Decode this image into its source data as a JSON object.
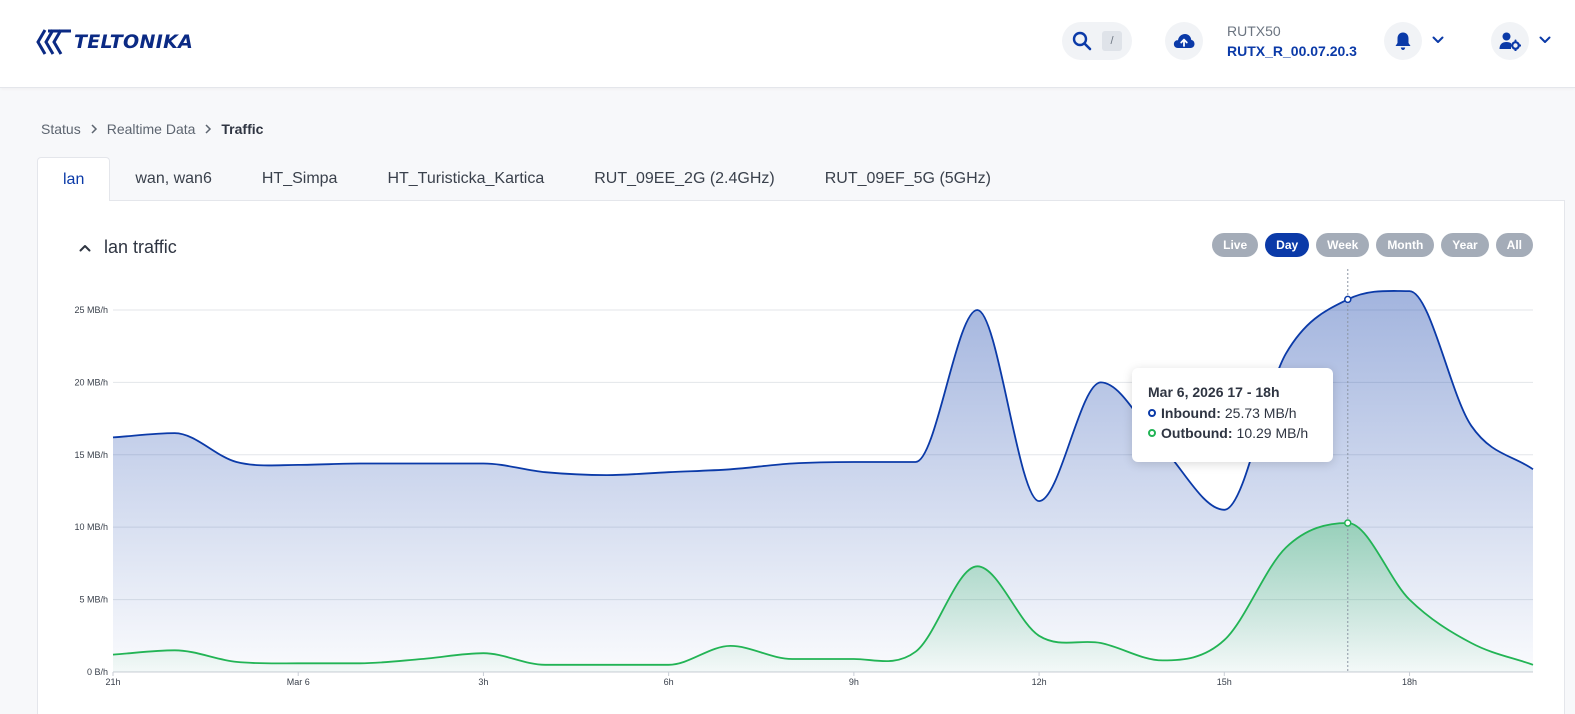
{
  "header": {
    "logo_text": "TELTONIKA",
    "search_shortcut": "/",
    "device_model": "RUTX50",
    "firmware": "RUTX_R_00.07.20.3"
  },
  "breadcrumb": [
    "Status",
    "Realtime Data",
    "Traffic"
  ],
  "tabs": [
    {
      "label": "lan",
      "active": true
    },
    {
      "label": "wan, wan6",
      "active": false
    },
    {
      "label": "HT_Simpa",
      "active": false
    },
    {
      "label": "HT_Turisticka_Kartica",
      "active": false
    },
    {
      "label": "RUT_09EE_2G (2.4GHz)",
      "active": false
    },
    {
      "label": "RUT_09EF_5G (5GHz)",
      "active": false
    }
  ],
  "panel": {
    "title": "lan traffic",
    "ranges": [
      {
        "label": "Live",
        "active": false
      },
      {
        "label": "Day",
        "active": true
      },
      {
        "label": "Week",
        "active": false
      },
      {
        "label": "Month",
        "active": false
      },
      {
        "label": "Year",
        "active": false
      },
      {
        "label": "All",
        "active": false
      }
    ]
  },
  "tooltip": {
    "title": "Mar 6, 2026 17 - 18h",
    "inbound_label": "Inbound:",
    "inbound_value": "25.73 MB/h",
    "outbound_label": "Outbound:",
    "outbound_value": "10.29 MB/h"
  },
  "colors": {
    "inbound": "#0b3aa8",
    "outbound": "#22b455",
    "accent": "#0b3aa8"
  },
  "chart_data": {
    "type": "area",
    "x_tick_labels": [
      "21h",
      "Mar 6",
      "3h",
      "6h",
      "9h",
      "12h",
      "15h",
      "18h"
    ],
    "y_tick_labels": [
      "0 B/h",
      "5 MB/h",
      "10 MB/h",
      "15 MB/h",
      "20 MB/h",
      "25 MB/h"
    ],
    "ylim": [
      0,
      27
    ],
    "x_hours": [
      21,
      22,
      23,
      0,
      1,
      2,
      3,
      4,
      5,
      6,
      7,
      8,
      9,
      10,
      11,
      12,
      13,
      14,
      15,
      16,
      17,
      18,
      19,
      20
    ],
    "series": [
      {
        "name": "Inbound",
        "values": [
          16.2,
          16.5,
          14.5,
          14.3,
          14.4,
          14.4,
          14.4,
          13.8,
          13.6,
          13.8,
          14.0,
          14.4,
          14.5,
          14.5,
          25.0,
          11.8,
          20.0,
          15.5,
          11.2,
          22.0,
          25.73,
          26.3,
          17.0,
          14.0
        ]
      },
      {
        "name": "Outbound",
        "values": [
          1.2,
          1.5,
          0.7,
          0.6,
          0.6,
          0.9,
          1.3,
          0.5,
          0.5,
          0.5,
          1.8,
          0.9,
          0.9,
          1.4,
          7.3,
          2.5,
          2.0,
          0.8,
          2.2,
          8.6,
          10.29,
          5.0,
          2.0,
          0.5
        ]
      }
    ],
    "highlight_index": 20,
    "grid": true
  }
}
